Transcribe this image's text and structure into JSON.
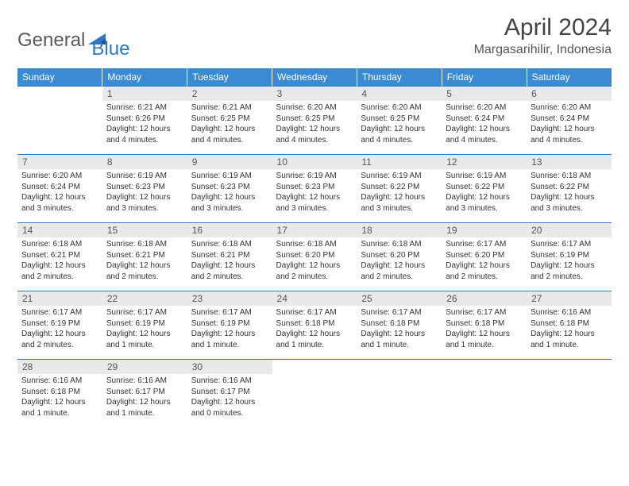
{
  "brand": {
    "general": "General",
    "blue": "Blue"
  },
  "title": "April 2024",
  "location": "Margasarihilir, Indonesia",
  "colors": {
    "header_bg": "#3b8bd4",
    "header_text": "#ffffff",
    "daynum_bg": "#e9e9e9",
    "rule": "#2f78c2",
    "accent": "#2f78c2"
  },
  "weekdays": [
    "Sunday",
    "Monday",
    "Tuesday",
    "Wednesday",
    "Thursday",
    "Friday",
    "Saturday"
  ],
  "weeks": [
    [
      {
        "n": "",
        "sunrise": "",
        "sunset": "",
        "daylight": "",
        "empty": true
      },
      {
        "n": "1",
        "sunrise": "Sunrise: 6:21 AM",
        "sunset": "Sunset: 6:26 PM",
        "daylight": "Daylight: 12 hours and 4 minutes."
      },
      {
        "n": "2",
        "sunrise": "Sunrise: 6:21 AM",
        "sunset": "Sunset: 6:25 PM",
        "daylight": "Daylight: 12 hours and 4 minutes."
      },
      {
        "n": "3",
        "sunrise": "Sunrise: 6:20 AM",
        "sunset": "Sunset: 6:25 PM",
        "daylight": "Daylight: 12 hours and 4 minutes."
      },
      {
        "n": "4",
        "sunrise": "Sunrise: 6:20 AM",
        "sunset": "Sunset: 6:25 PM",
        "daylight": "Daylight: 12 hours and 4 minutes."
      },
      {
        "n": "5",
        "sunrise": "Sunrise: 6:20 AM",
        "sunset": "Sunset: 6:24 PM",
        "daylight": "Daylight: 12 hours and 4 minutes."
      },
      {
        "n": "6",
        "sunrise": "Sunrise: 6:20 AM",
        "sunset": "Sunset: 6:24 PM",
        "daylight": "Daylight: 12 hours and 4 minutes."
      }
    ],
    [
      {
        "n": "7",
        "sunrise": "Sunrise: 6:20 AM",
        "sunset": "Sunset: 6:24 PM",
        "daylight": "Daylight: 12 hours and 3 minutes."
      },
      {
        "n": "8",
        "sunrise": "Sunrise: 6:19 AM",
        "sunset": "Sunset: 6:23 PM",
        "daylight": "Daylight: 12 hours and 3 minutes."
      },
      {
        "n": "9",
        "sunrise": "Sunrise: 6:19 AM",
        "sunset": "Sunset: 6:23 PM",
        "daylight": "Daylight: 12 hours and 3 minutes."
      },
      {
        "n": "10",
        "sunrise": "Sunrise: 6:19 AM",
        "sunset": "Sunset: 6:23 PM",
        "daylight": "Daylight: 12 hours and 3 minutes."
      },
      {
        "n": "11",
        "sunrise": "Sunrise: 6:19 AM",
        "sunset": "Sunset: 6:22 PM",
        "daylight": "Daylight: 12 hours and 3 minutes."
      },
      {
        "n": "12",
        "sunrise": "Sunrise: 6:19 AM",
        "sunset": "Sunset: 6:22 PM",
        "daylight": "Daylight: 12 hours and 3 minutes."
      },
      {
        "n": "13",
        "sunrise": "Sunrise: 6:18 AM",
        "sunset": "Sunset: 6:22 PM",
        "daylight": "Daylight: 12 hours and 3 minutes."
      }
    ],
    [
      {
        "n": "14",
        "sunrise": "Sunrise: 6:18 AM",
        "sunset": "Sunset: 6:21 PM",
        "daylight": "Daylight: 12 hours and 2 minutes."
      },
      {
        "n": "15",
        "sunrise": "Sunrise: 6:18 AM",
        "sunset": "Sunset: 6:21 PM",
        "daylight": "Daylight: 12 hours and 2 minutes."
      },
      {
        "n": "16",
        "sunrise": "Sunrise: 6:18 AM",
        "sunset": "Sunset: 6:21 PM",
        "daylight": "Daylight: 12 hours and 2 minutes."
      },
      {
        "n": "17",
        "sunrise": "Sunrise: 6:18 AM",
        "sunset": "Sunset: 6:20 PM",
        "daylight": "Daylight: 12 hours and 2 minutes."
      },
      {
        "n": "18",
        "sunrise": "Sunrise: 6:18 AM",
        "sunset": "Sunset: 6:20 PM",
        "daylight": "Daylight: 12 hours and 2 minutes."
      },
      {
        "n": "19",
        "sunrise": "Sunrise: 6:17 AM",
        "sunset": "Sunset: 6:20 PM",
        "daylight": "Daylight: 12 hours and 2 minutes."
      },
      {
        "n": "20",
        "sunrise": "Sunrise: 6:17 AM",
        "sunset": "Sunset: 6:19 PM",
        "daylight": "Daylight: 12 hours and 2 minutes."
      }
    ],
    [
      {
        "n": "21",
        "sunrise": "Sunrise: 6:17 AM",
        "sunset": "Sunset: 6:19 PM",
        "daylight": "Daylight: 12 hours and 2 minutes."
      },
      {
        "n": "22",
        "sunrise": "Sunrise: 6:17 AM",
        "sunset": "Sunset: 6:19 PM",
        "daylight": "Daylight: 12 hours and 1 minute."
      },
      {
        "n": "23",
        "sunrise": "Sunrise: 6:17 AM",
        "sunset": "Sunset: 6:19 PM",
        "daylight": "Daylight: 12 hours and 1 minute."
      },
      {
        "n": "24",
        "sunrise": "Sunrise: 6:17 AM",
        "sunset": "Sunset: 6:18 PM",
        "daylight": "Daylight: 12 hours and 1 minute."
      },
      {
        "n": "25",
        "sunrise": "Sunrise: 6:17 AM",
        "sunset": "Sunset: 6:18 PM",
        "daylight": "Daylight: 12 hours and 1 minute."
      },
      {
        "n": "26",
        "sunrise": "Sunrise: 6:17 AM",
        "sunset": "Sunset: 6:18 PM",
        "daylight": "Daylight: 12 hours and 1 minute."
      },
      {
        "n": "27",
        "sunrise": "Sunrise: 6:16 AM",
        "sunset": "Sunset: 6:18 PM",
        "daylight": "Daylight: 12 hours and 1 minute."
      }
    ],
    [
      {
        "n": "28",
        "sunrise": "Sunrise: 6:16 AM",
        "sunset": "Sunset: 6:18 PM",
        "daylight": "Daylight: 12 hours and 1 minute."
      },
      {
        "n": "29",
        "sunrise": "Sunrise: 6:16 AM",
        "sunset": "Sunset: 6:17 PM",
        "daylight": "Daylight: 12 hours and 1 minute."
      },
      {
        "n": "30",
        "sunrise": "Sunrise: 6:16 AM",
        "sunset": "Sunset: 6:17 PM",
        "daylight": "Daylight: 12 hours and 0 minutes."
      },
      {
        "n": "",
        "sunrise": "",
        "sunset": "",
        "daylight": "",
        "empty": true
      },
      {
        "n": "",
        "sunrise": "",
        "sunset": "",
        "daylight": "",
        "empty": true
      },
      {
        "n": "",
        "sunrise": "",
        "sunset": "",
        "daylight": "",
        "empty": true
      },
      {
        "n": "",
        "sunrise": "",
        "sunset": "",
        "daylight": "",
        "empty": true
      }
    ]
  ]
}
